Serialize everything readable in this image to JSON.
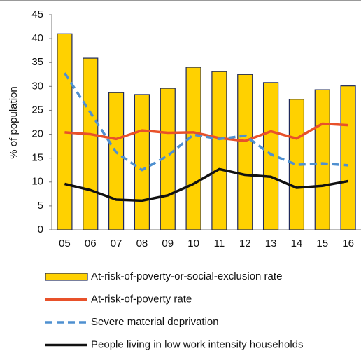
{
  "chart_data": {
    "type": "bar-line",
    "y_label": "% of population",
    "categories": [
      "05",
      "06",
      "07",
      "08",
      "09",
      "10",
      "11",
      "12",
      "13",
      "14",
      "15",
      "16"
    ],
    "ylim": [
      0,
      45
    ],
    "yticks": [
      0,
      5,
      10,
      15,
      20,
      25,
      30,
      35,
      40,
      45
    ],
    "series": [
      {
        "name": "At-risk-of-poverty-or-social-exclusion rate",
        "kind": "bar",
        "color": "#FFD100",
        "values": [
          41,
          35.9,
          28.7,
          28.3,
          29.6,
          34,
          33.1,
          32.5,
          30.8,
          27.3,
          29.3,
          30.1
        ]
      },
      {
        "name": "At-risk-of-poverty rate",
        "kind": "line",
        "color": "#E8512A",
        "values": [
          20.4,
          20,
          19,
          20.8,
          20.3,
          20.4,
          19.2,
          18.6,
          20.6,
          19.1,
          22.2,
          21.9
        ]
      },
      {
        "name": "Severe material deprivation",
        "kind": "dashed",
        "color": "#4F90D0",
        "values": [
          32.8,
          24.5,
          16.2,
          12.5,
          15.5,
          19.9,
          19,
          19.7,
          15.8,
          13.6,
          13.9,
          13.5
        ]
      },
      {
        "name": "People living in low work intensity households",
        "kind": "line",
        "color": "#111111",
        "values": [
          9.6,
          8.3,
          6.3,
          6.1,
          7.2,
          9.6,
          12.7,
          11.5,
          11.1,
          8.8,
          9.2,
          10.2
        ]
      }
    ]
  }
}
